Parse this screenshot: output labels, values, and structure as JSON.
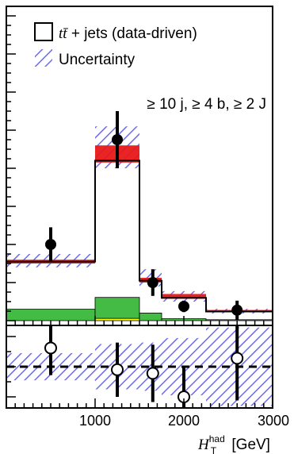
{
  "chart_data": [
    {
      "type": "bar",
      "panel": "main",
      "annotation": "≥ 10 j, ≥ 4 b, ≥ 2 J",
      "legend": {
        "placement": "top-left",
        "entries": [
          {
            "label": " + jets (data-driven)",
            "math": "tt̄",
            "style": "open-box"
          },
          {
            "label": "Uncertainty",
            "style": "hatched-blue"
          }
        ]
      },
      "bins": [
        [
          0,
          1000
        ],
        [
          1000,
          1500
        ],
        [
          1500,
          1750
        ],
        [
          1750,
          2250
        ],
        [
          2250,
          3000
        ]
      ],
      "series": [
        {
          "name": "t t̄ + jets (data-driven)",
          "values": [
            3.1,
            8.4,
            2.1,
            1.2,
            0.48
          ]
        },
        {
          "name": "Uncertainty",
          "lower": [
            2.8,
            8.0,
            1.8,
            1.0,
            0.38
          ],
          "upper": [
            3.5,
            10.2,
            2.7,
            1.55,
            0.62
          ]
        }
      ],
      "red_band": {
        "lower": [
          3.0,
          8.3,
          2.0,
          1.15,
          0.44
        ],
        "upper": [
          3.2,
          9.2,
          2.25,
          1.4,
          0.56
        ]
      },
      "stacked_backgrounds": [
        {
          "color": "#ffff00",
          "values": [
            0.0,
            0.12,
            0.0,
            0.0,
            0.0
          ]
        },
        {
          "color": "#44bb44",
          "values": [
            0.6,
            1.1,
            0.4,
            0.1,
            0.05
          ]
        }
      ],
      "data_points": {
        "x": [
          500,
          1250,
          1650,
          2000,
          2600
        ],
        "y": [
          4.0,
          9.5,
          2.0,
          0.75,
          0.55
        ],
        "err": [
          0.9,
          1.5,
          0.7,
          0.3,
          0.5
        ]
      }
    },
    {
      "type": "scatter",
      "panel": "lower",
      "x": [
        500,
        1250,
        1650,
        2000,
        2600
      ],
      "y": [
        0.62,
        -0.1,
        -0.22,
        -1.0,
        0.28
      ],
      "err": [
        0.9,
        0.9,
        0.95,
        1.0,
        1.4
      ],
      "reference_line": 0,
      "uncertainty_band": {
        "bins": [
          [
            0,
            1000
          ],
          [
            1000,
            1500
          ],
          [
            1500,
            1750
          ],
          [
            1750,
            2250
          ],
          [
            2250,
            3000
          ]
        ],
        "half_width": [
          0.45,
          0.75,
          0.8,
          0.95,
          1.3
        ]
      }
    }
  ],
  "x_axis": {
    "label_math": "H",
    "label_sup": "had",
    "label_sub": "T",
    "label_unit": " [GeV]",
    "ticks": [
      "1000",
      "2000",
      "3000"
    ],
    "range": [
      0,
      3000
    ]
  }
}
